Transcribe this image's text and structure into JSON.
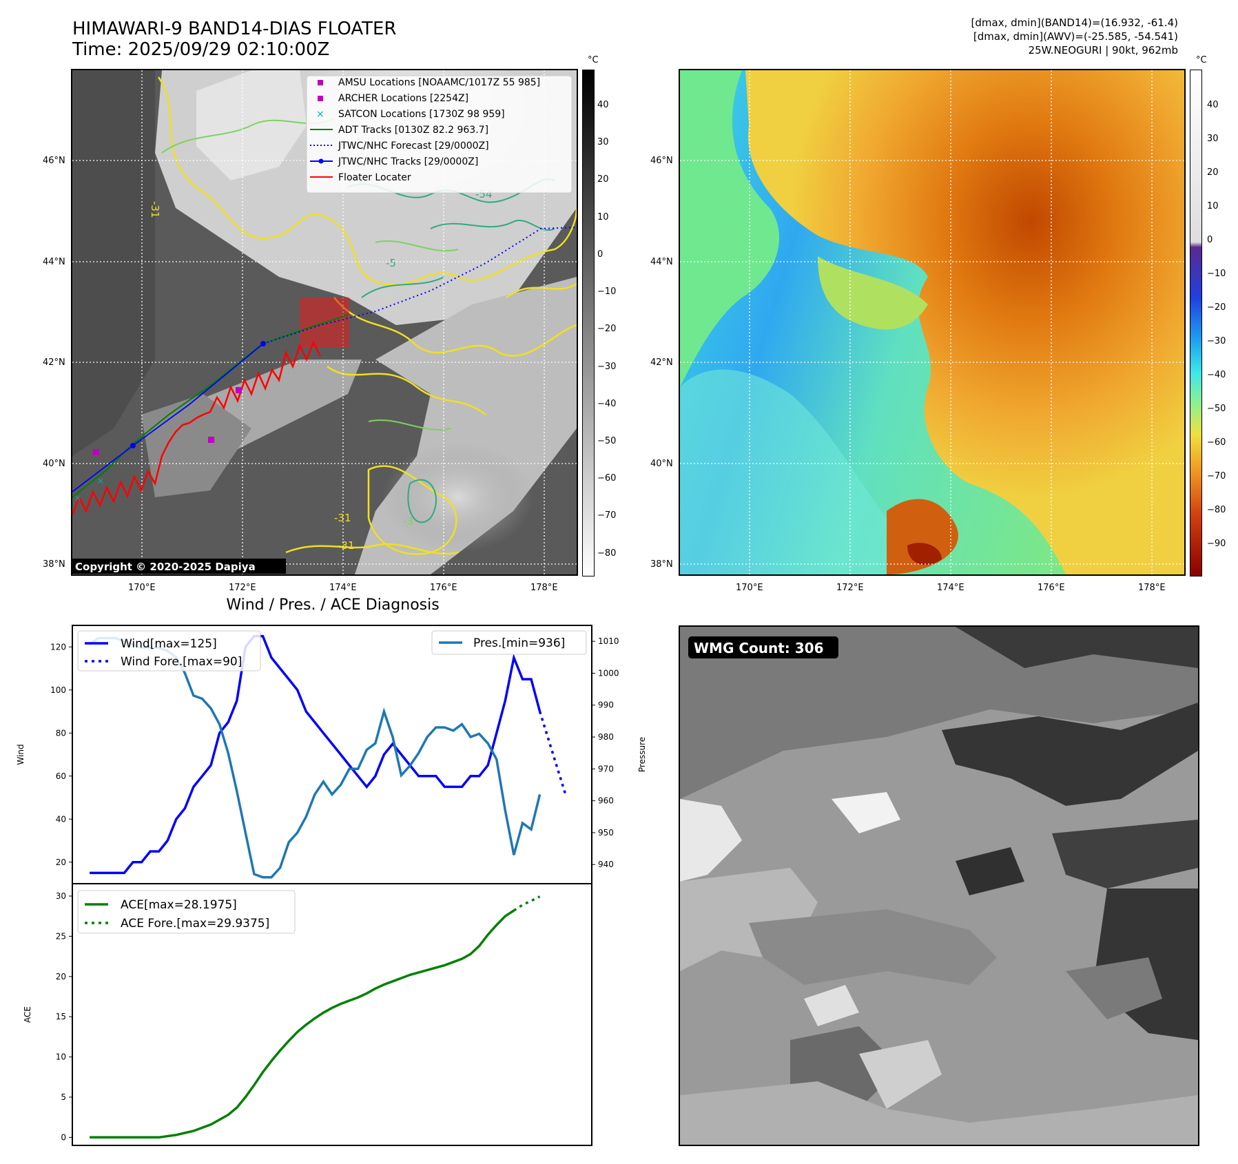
{
  "header": {
    "title_line1": "HIMAWARI-9 BAND14-DIAS FLOATER",
    "title_line2": "Time: 2025/09/29 02:10:00Z",
    "info_line1": "[dmax, dmin](BAND14)=(16.932, -61.4)",
    "info_line2": "[dmax, dmin](AWV)=(-25.585, -54.541)",
    "info_line3": "25W.NEOGURI | 90kt, 962mb"
  },
  "map": {
    "lat_labels": [
      "46°N",
      "44°N",
      "42°N",
      "40°N",
      "38°N"
    ],
    "lon_labels": [
      "170°E",
      "172°E",
      "174°E",
      "176°E",
      "178°E"
    ],
    "copyright": "Copyright © 2020-2025 Dapiya",
    "contour_labels": [
      "-54",
      "-5",
      "-31",
      "-31",
      "-3",
      "-31"
    ],
    "legend": [
      {
        "label": "AMSU Locations [NOAAMC/1017Z 55 985]",
        "color": "#c000c0",
        "kind": "square"
      },
      {
        "label": "ARCHER Locations [2254Z]",
        "color": "#c000c0",
        "kind": "square"
      },
      {
        "label": "SATCON Locations [1730Z 98 959]",
        "color": "#00b0b0",
        "kind": "x"
      },
      {
        "label": "ADT Tracks [0130Z 82.2 963.7]",
        "color": "#008000",
        "kind": "line"
      },
      {
        "label": "JTWC/NHC Forecast [29/0000Z]",
        "color": "#0000ff",
        "kind": "dotted"
      },
      {
        "label": "JTWC/NHC Tracks [29/0000Z]",
        "color": "#0000ff",
        "kind": "line-dot"
      },
      {
        "label": "Floater Locater",
        "color": "#ff0000",
        "kind": "line"
      }
    ]
  },
  "colorbar1": {
    "unit": "°C",
    "ticks": [
      "40",
      "30",
      "20",
      "10",
      "0",
      "−10",
      "−20",
      "−30",
      "−40",
      "−50",
      "−60",
      "−70",
      "−80"
    ]
  },
  "colorbar2": {
    "unit": "°C",
    "ticks": [
      "40",
      "30",
      "20",
      "10",
      "0",
      "−10",
      "−20",
      "−30",
      "−40",
      "−50",
      "−60",
      "−70",
      "−80",
      "−90"
    ]
  },
  "wmg": {
    "label": "WMG Count: 306"
  },
  "chart_data": [
    {
      "type": "line",
      "title": "Wind / Pres. / ACE Diagnosis",
      "ylabel": "Wind",
      "y2label": "Pressure",
      "ylim": [
        10,
        130
      ],
      "y2lim": [
        934,
        1015
      ],
      "yticks": [
        20,
        40,
        60,
        80,
        100,
        120
      ],
      "y2ticks": [
        940,
        950,
        960,
        970,
        980,
        990,
        1000,
        1010
      ],
      "series": [
        {
          "name": "Wind[max=125]",
          "axis": "left",
          "color": "#0000ff",
          "style": "solid",
          "points": [
            [
              0,
              15
            ],
            [
              1,
              15
            ],
            [
              2,
              15
            ],
            [
              3,
              15
            ],
            [
              4,
              15
            ],
            [
              5,
              20
            ],
            [
              6,
              20
            ],
            [
              7,
              25
            ],
            [
              8,
              25
            ],
            [
              9,
              30
            ],
            [
              10,
              40
            ],
            [
              11,
              45
            ],
            [
              12,
              55
            ],
            [
              13,
              60
            ],
            [
              14,
              65
            ],
            [
              15,
              80
            ],
            [
              16,
              85
            ],
            [
              17,
              95
            ],
            [
              18,
              120
            ],
            [
              19,
              125
            ],
            [
              20,
              125
            ],
            [
              21,
              115
            ],
            [
              22,
              110
            ],
            [
              23,
              105
            ],
            [
              24,
              100
            ],
            [
              25,
              90
            ],
            [
              26,
              85
            ],
            [
              27,
              80
            ],
            [
              28,
              75
            ],
            [
              29,
              70
            ],
            [
              30,
              65
            ],
            [
              31,
              60
            ],
            [
              32,
              55
            ],
            [
              33,
              60
            ],
            [
              34,
              70
            ],
            [
              35,
              75
            ],
            [
              36,
              70
            ],
            [
              37,
              65
            ],
            [
              38,
              60
            ],
            [
              39,
              60
            ],
            [
              40,
              60
            ],
            [
              41,
              55
            ],
            [
              42,
              55
            ],
            [
              43,
              55
            ],
            [
              44,
              60
            ],
            [
              45,
              60
            ],
            [
              46,
              65
            ],
            [
              47,
              80
            ],
            [
              48,
              95
            ],
            [
              49,
              115
            ],
            [
              50,
              105
            ],
            [
              51,
              105
            ],
            [
              52,
              90
            ]
          ]
        },
        {
          "name": "Wind Fore.[max=90]",
          "axis": "left",
          "color": "#0000ff",
          "style": "dotted",
          "points": [
            [
              52,
              90
            ],
            [
              55,
              51
            ]
          ]
        },
        {
          "name": "Pres.[min=936]",
          "axis": "right",
          "color": "#1f77b4",
          "style": "solid",
          "points": [
            [
              0,
              1009
            ],
            [
              1,
              1011
            ],
            [
              2,
              1011
            ],
            [
              3,
              1011
            ],
            [
              4,
              1010
            ],
            [
              5,
              1009
            ],
            [
              6,
              1008
            ],
            [
              7,
              1008
            ],
            [
              8,
              1008
            ],
            [
              9,
              1007
            ],
            [
              10,
              1005
            ],
            [
              11,
              1000
            ],
            [
              12,
              993
            ],
            [
              13,
              992
            ],
            [
              14,
              989
            ],
            [
              15,
              984
            ],
            [
              16,
              975
            ],
            [
              17,
              963
            ],
            [
              18,
              950
            ],
            [
              19,
              937
            ],
            [
              20,
              936
            ],
            [
              21,
              936
            ],
            [
              22,
              939
            ],
            [
              23,
              947
            ],
            [
              24,
              950
            ],
            [
              25,
              955
            ],
            [
              26,
              962
            ],
            [
              27,
              966
            ],
            [
              28,
              962
            ],
            [
              29,
              965
            ],
            [
              30,
              970
            ],
            [
              31,
              970
            ],
            [
              32,
              976
            ],
            [
              33,
              978
            ],
            [
              34,
              988
            ],
            [
              35,
              980
            ],
            [
              36,
              968
            ],
            [
              37,
              971
            ],
            [
              38,
              975
            ],
            [
              39,
              980
            ],
            [
              40,
              983
            ],
            [
              41,
              983
            ],
            [
              42,
              982
            ],
            [
              43,
              984
            ],
            [
              44,
              980
            ],
            [
              45,
              981
            ],
            [
              46,
              978
            ],
            [
              47,
              973
            ],
            [
              48,
              957
            ],
            [
              49,
              943
            ],
            [
              50,
              953
            ],
            [
              51,
              951
            ],
            [
              52,
              962
            ]
          ]
        }
      ]
    },
    {
      "type": "line",
      "ylabel": "ACE",
      "ylim": [
        -1,
        30
      ],
      "yticks": [
        0,
        5,
        10,
        15,
        20,
        25,
        30
      ],
      "series": [
        {
          "name": "ACE[max=28.1975]",
          "color": "#008000",
          "style": "solid",
          "points": [
            [
              0,
              0
            ],
            [
              4,
              0
            ],
            [
              8,
              0
            ],
            [
              10,
              0.3
            ],
            [
              12,
              0.8
            ],
            [
              14,
              1.6
            ],
            [
              16,
              2.8
            ],
            [
              17,
              3.7
            ],
            [
              18,
              5.0
            ],
            [
              19,
              6.5
            ],
            [
              20,
              8.1
            ],
            [
              21,
              9.5
            ],
            [
              22,
              10.8
            ],
            [
              23,
              12.0
            ],
            [
              24,
              13.1
            ],
            [
              25,
              14.0
            ],
            [
              26,
              14.8
            ],
            [
              27,
              15.5
            ],
            [
              28,
              16.1
            ],
            [
              29,
              16.6
            ],
            [
              30,
              17.0
            ],
            [
              31,
              17.4
            ],
            [
              32,
              17.9
            ],
            [
              33,
              18.5
            ],
            [
              34,
              19.0
            ],
            [
              35,
              19.4
            ],
            [
              36,
              19.8
            ],
            [
              37,
              20.2
            ],
            [
              38,
              20.5
            ],
            [
              39,
              20.8
            ],
            [
              40,
              21.1
            ],
            [
              41,
              21.4
            ],
            [
              42,
              21.8
            ],
            [
              43,
              22.2
            ],
            [
              44,
              22.8
            ],
            [
              45,
              23.8
            ],
            [
              46,
              25.2
            ],
            [
              47,
              26.4
            ],
            [
              48,
              27.5
            ],
            [
              49,
              28.1975
            ]
          ]
        },
        {
          "name": "ACE Fore.[max=29.9375]",
          "color": "#008000",
          "style": "dotted",
          "points": [
            [
              49,
              28.1975
            ],
            [
              50,
              28.9
            ],
            [
              51,
              29.4
            ],
            [
              52,
              29.9375
            ]
          ]
        }
      ]
    }
  ]
}
